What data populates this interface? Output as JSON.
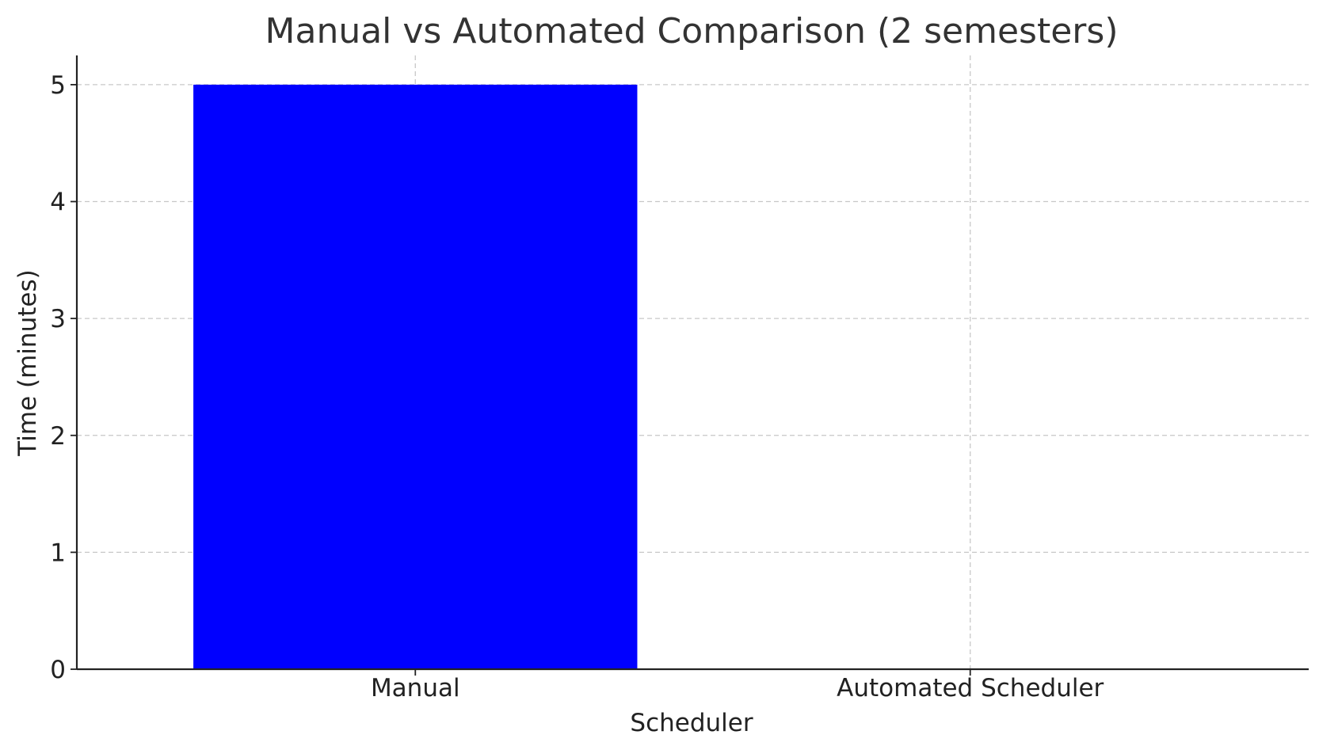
{
  "chart_data": {
    "type": "bar",
    "title": "Manual vs Automated Comparison (2 semesters)",
    "xlabel": "Scheduler",
    "ylabel": "Time (minutes)",
    "categories": [
      "Manual",
      "Automated Scheduler"
    ],
    "values": [
      5,
      0
    ],
    "ylim": [
      0,
      5.25
    ],
    "yticks": [
      0,
      1,
      2,
      3,
      4,
      5
    ],
    "grid": true,
    "bar_color": "#0000ff"
  }
}
